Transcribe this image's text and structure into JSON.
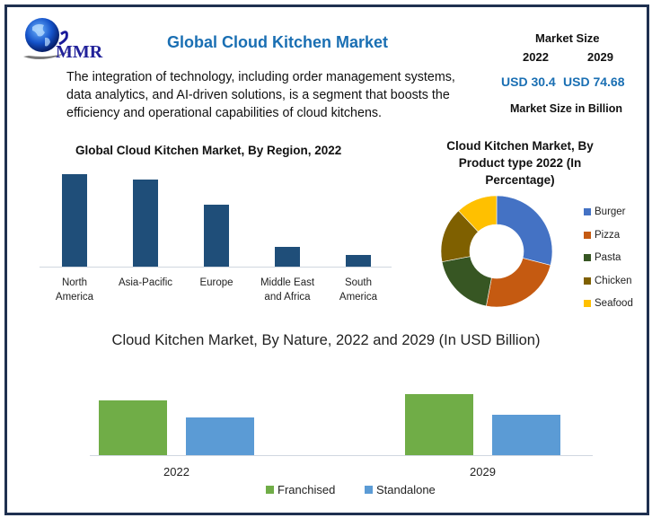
{
  "header": {
    "logo_text": "MMR",
    "title": "Global Cloud Kitchen Market",
    "intro": "The integration of technology, including order management systems, data analytics, and AI-driven solutions, is a segment that boosts the efficiency and operational capabilities of cloud kitchens."
  },
  "market_size": {
    "label": "Market Size",
    "year_a": "2022",
    "year_b": "2029",
    "value_a": "USD 30.4",
    "value_b": "USD 74.68",
    "unit": "Market Size in Billion"
  },
  "colors": {
    "title_blue": "#1a6fb3",
    "frame": "#1f3050",
    "region_bar": "#1f4e79",
    "franchised": "#70ad47",
    "standalone": "#5b9bd5",
    "burger": "#4472c4",
    "pizza": "#c55a11",
    "pasta": "#375623",
    "chicken": "#7f6000",
    "seafood": "#ffc000"
  },
  "chart_data": [
    {
      "type": "bar",
      "title": "Global Cloud Kitchen Market, By Region, 2022",
      "categories": [
        "North America",
        "Asia-Pacific",
        "Europe",
        "Middle East and Africa",
        "South America"
      ],
      "category_lines": [
        [
          "North",
          "America"
        ],
        [
          "Asia-Pacific",
          ""
        ],
        [
          "Europe",
          ""
        ],
        [
          "Middle East",
          "and Africa"
        ],
        [
          "South",
          "America"
        ]
      ],
      "values": [
        103,
        97,
        69,
        22,
        13
      ],
      "xlabel": "",
      "ylabel": "",
      "grid": false,
      "note": "Relative bar heights (no axis values shown)"
    },
    {
      "type": "pie",
      "subtype": "donut",
      "title": "Cloud Kitchen Market, By Product type 2022 (In Percentage)",
      "title_lines": [
        "Cloud Kitchen Market, By",
        "Product type 2022 (In",
        "Percentage)"
      ],
      "categories": [
        "Burger",
        "Pizza",
        "Pasta",
        "Chicken",
        "Seafood"
      ],
      "values": [
        29,
        24,
        19,
        16,
        12
      ],
      "legend_position": "right"
    },
    {
      "type": "bar",
      "title": "Cloud Kitchen Market, By Nature, 2022 and 2029 (In USD Billion)",
      "categories": [
        "2022",
        "2029"
      ],
      "series": [
        {
          "name": "Franchised",
          "values": [
            61,
            68
          ]
        },
        {
          "name": "Standalone",
          "values": [
            42,
            45
          ]
        }
      ],
      "legend_position": "bottom",
      "grid": false,
      "note": "Relative bar heights (no axis values shown)"
    }
  ]
}
